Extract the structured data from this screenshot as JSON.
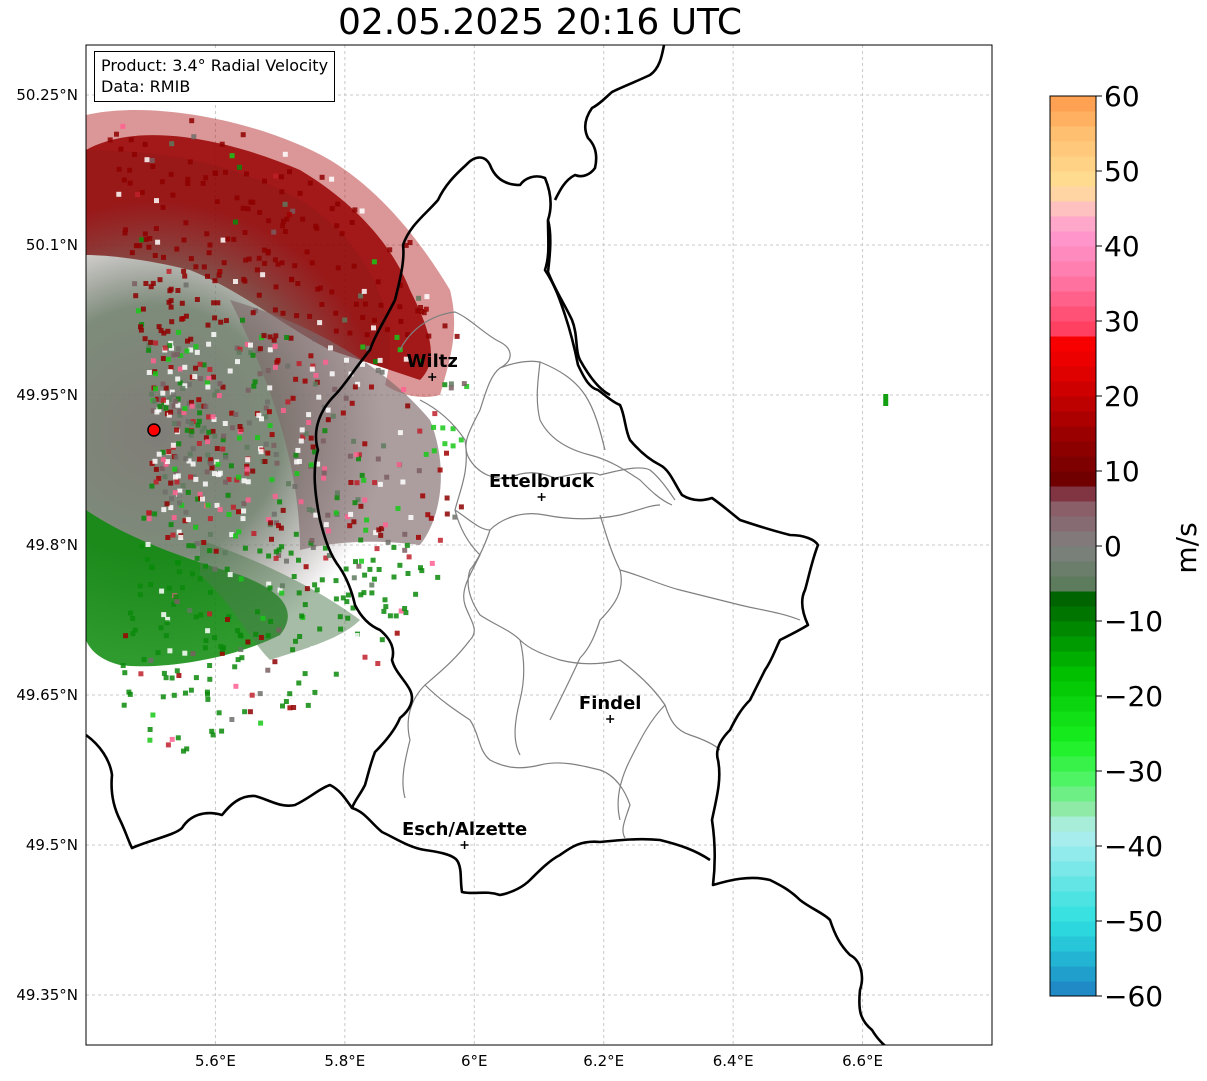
{
  "title": "02.05.2025 20:16 UTC",
  "info": {
    "product_line": "Product: 3.4° Radial Velocity",
    "data_line": "Data: RMIB"
  },
  "map": {
    "lon_range": [
      5.4,
      6.8
    ],
    "lat_range": [
      49.3,
      50.3
    ],
    "lon_ticks": [
      "5.6°E",
      "5.8°E",
      "6°E",
      "6.2°E",
      "6.4°E",
      "6.6°E"
    ],
    "lat_ticks": [
      "50.25°N",
      "50.1°N",
      "49.95°N",
      "49.8°N",
      "49.65°N",
      "49.5°N",
      "49.35°N"
    ],
    "grid": true,
    "radar_site": {
      "lon": 5.505,
      "lat": 49.915,
      "color": "#ff0000"
    },
    "cities": [
      {
        "name": "Wiltz",
        "lon": 5.935,
        "lat": 49.968
      },
      {
        "name": "Ettelbruck",
        "lon": 6.104,
        "lat": 49.848
      },
      {
        "name": "Findel",
        "lon": 6.21,
        "lat": 49.626
      },
      {
        "name": "Esch/Alzette",
        "lon": 5.985,
        "lat": 49.5
      }
    ]
  },
  "colorbar": {
    "label": "m/s",
    "min": -60,
    "max": 60,
    "ticks": [
      "60",
      "50",
      "40",
      "30",
      "20",
      "10",
      "0",
      "−10",
      "−20",
      "−30",
      "−40",
      "−50",
      "−60"
    ],
    "stops": [
      {
        "v": -60,
        "c": "#1f7fc4"
      },
      {
        "v": -55,
        "c": "#22b4d2"
      },
      {
        "v": -50,
        "c": "#2ee0e0"
      },
      {
        "v": -44,
        "c": "#6ee6e6"
      },
      {
        "v": -38,
        "c": "#b4eef0"
      },
      {
        "v": -35,
        "c": "#8eeaa6"
      },
      {
        "v": -31,
        "c": "#4ef464"
      },
      {
        "v": -26,
        "c": "#18f020"
      },
      {
        "v": -17,
        "c": "#00c000"
      },
      {
        "v": -7,
        "c": "#006400"
      },
      {
        "v": -6,
        "c": "#567a56"
      },
      {
        "v": 0,
        "c": "#808080"
      },
      {
        "v": 5,
        "c": "#8a5f68"
      },
      {
        "v": 8,
        "c": "#7c2030"
      },
      {
        "v": 9,
        "c": "#700000"
      },
      {
        "v": 15,
        "c": "#9a0000"
      },
      {
        "v": 22,
        "c": "#d80000"
      },
      {
        "v": 28,
        "c": "#ff0000"
      },
      {
        "v": 29,
        "c": "#ff4060"
      },
      {
        "v": 36,
        "c": "#ff7aaa"
      },
      {
        "v": 42,
        "c": "#ff9ad0"
      },
      {
        "v": 45,
        "c": "#ffc0c0"
      },
      {
        "v": 48,
        "c": "#ffe094"
      },
      {
        "v": 55,
        "c": "#ffbf70"
      },
      {
        "v": 60,
        "c": "#ff9a4a"
      }
    ]
  },
  "echo_regions": {
    "north_band": "#8e0000",
    "core": "#7b6f6a",
    "south_band": "#0a8a0a",
    "isolated_pixel": {
      "lon": 6.635,
      "lat": 49.945,
      "color": "#12a012"
    }
  }
}
